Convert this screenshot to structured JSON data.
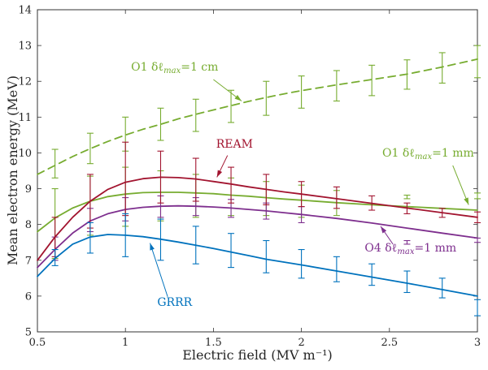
{
  "chart_data": {
    "type": "line",
    "title": "",
    "xlabel": "Electric field (MV m⁻¹)",
    "ylabel": "Mean electron energy (MeV)",
    "xlim": [
      0.5,
      3
    ],
    "ylim": [
      5,
      14
    ],
    "grid": false,
    "legend_position": "inline-annotations",
    "xticks": {
      "values": [
        0.5,
        1,
        1.5,
        2,
        2.5,
        3
      ],
      "labels": [
        "0.5",
        "1",
        "1.5",
        "2",
        "2.5",
        "3"
      ]
    },
    "yticks": {
      "values": [
        5,
        6,
        7,
        8,
        9,
        10,
        11,
        12,
        13,
        14
      ],
      "labels": [
        "5",
        "6",
        "7",
        "8",
        "9",
        "10",
        "11",
        "12",
        "13",
        "14"
      ]
    },
    "series": [
      {
        "id": "o1-1cm",
        "name": "O1 δℓmax=1 cm",
        "color": "#77ac30",
        "line_style": "dashed",
        "dash": "9,6",
        "x": [
          0.5,
          0.6,
          0.7,
          0.8,
          0.9,
          1.0,
          1.1,
          1.2,
          1.3,
          1.4,
          1.5,
          1.6,
          1.7,
          1.8,
          1.9,
          2.0,
          2.2,
          2.4,
          2.6,
          2.8,
          3.0
        ],
        "y": [
          9.4,
          9.65,
          9.9,
          10.12,
          10.32,
          10.5,
          10.66,
          10.8,
          10.95,
          11.08,
          11.2,
          11.32,
          11.44,
          11.55,
          11.65,
          11.74,
          11.9,
          12.05,
          12.2,
          12.4,
          12.62
        ],
        "errorbars": [
          {
            "x": 0.6,
            "lo": 9.3,
            "hi": 10.1
          },
          {
            "x": 0.8,
            "lo": 9.7,
            "hi": 10.55
          },
          {
            "x": 1.0,
            "lo": 10.05,
            "hi": 11.0
          },
          {
            "x": 1.2,
            "lo": 10.35,
            "hi": 11.25
          },
          {
            "x": 1.4,
            "lo": 10.6,
            "hi": 11.5
          },
          {
            "x": 1.6,
            "lo": 10.85,
            "hi": 11.75
          },
          {
            "x": 1.8,
            "lo": 11.05,
            "hi": 12.0
          },
          {
            "x": 2.0,
            "lo": 11.25,
            "hi": 12.15
          },
          {
            "x": 2.2,
            "lo": 11.45,
            "hi": 12.3
          },
          {
            "x": 2.4,
            "lo": 11.6,
            "hi": 12.45
          },
          {
            "x": 2.6,
            "lo": 11.78,
            "hi": 12.6
          },
          {
            "x": 2.8,
            "lo": 11.95,
            "hi": 12.8
          },
          {
            "x": 3.0,
            "lo": 12.1,
            "hi": 13.0
          }
        ]
      },
      {
        "id": "o1-1mm",
        "name": "O1 δℓmax=1 mm",
        "color": "#77ac30",
        "line_style": "solid",
        "dash": "",
        "x": [
          0.5,
          0.6,
          0.7,
          0.8,
          0.9,
          1.0,
          1.1,
          1.2,
          1.3,
          1.4,
          1.5,
          1.6,
          1.7,
          1.8,
          1.9,
          2.0,
          2.2,
          2.4,
          2.6,
          2.8,
          3.0
        ],
        "y": [
          7.8,
          8.18,
          8.46,
          8.65,
          8.78,
          8.85,
          8.89,
          8.9,
          8.9,
          8.88,
          8.86,
          8.82,
          8.79,
          8.75,
          8.71,
          8.68,
          8.61,
          8.55,
          8.5,
          8.45,
          8.4
        ],
        "errorbars": [
          {
            "x": 0.6,
            "lo": 7.05,
            "hi": 9.0
          },
          {
            "x": 0.8,
            "lo": 7.7,
            "hi": 9.35
          },
          {
            "x": 1.0,
            "lo": 7.95,
            "hi": 9.6
          },
          {
            "x": 1.2,
            "lo": 8.1,
            "hi": 9.5
          },
          {
            "x": 1.4,
            "lo": 8.2,
            "hi": 9.4
          },
          {
            "x": 1.6,
            "lo": 8.25,
            "hi": 9.3
          },
          {
            "x": 1.8,
            "lo": 8.25,
            "hi": 9.2
          },
          {
            "x": 2.0,
            "lo": 8.2,
            "hi": 9.1
          },
          {
            "x": 2.2,
            "lo": 8.25,
            "hi": 8.95
          },
          {
            "x": 2.6,
            "lo": 8.72,
            "hi": 8.82
          },
          {
            "x": 3.0,
            "lo": 8.72,
            "hi": 8.88
          }
        ]
      },
      {
        "id": "o4-1mm",
        "name": "O4 δℓmax=1 mm",
        "color": "#7e2f8e",
        "line_style": "solid",
        "dash": "",
        "x": [
          0.5,
          0.6,
          0.7,
          0.8,
          0.9,
          1.0,
          1.1,
          1.2,
          1.3,
          1.4,
          1.5,
          1.6,
          1.7,
          1.8,
          1.9,
          2.0,
          2.2,
          2.4,
          2.6,
          2.8,
          3.0
        ],
        "y": [
          6.8,
          7.3,
          7.76,
          8.1,
          8.3,
          8.42,
          8.48,
          8.51,
          8.52,
          8.51,
          8.49,
          8.46,
          8.42,
          8.38,
          8.33,
          8.28,
          8.17,
          8.04,
          7.9,
          7.76,
          7.62
        ],
        "errorbars": [
          {
            "x": 0.6,
            "lo": 7.0,
            "hi": 7.65
          },
          {
            "x": 0.8,
            "lo": 7.8,
            "hi": 8.45
          },
          {
            "x": 1.0,
            "lo": 8.1,
            "hi": 8.75
          },
          {
            "x": 1.2,
            "lo": 8.2,
            "hi": 8.8
          },
          {
            "x": 1.4,
            "lo": 8.25,
            "hi": 8.75
          },
          {
            "x": 1.6,
            "lo": 8.2,
            "hi": 8.7
          },
          {
            "x": 1.8,
            "lo": 8.15,
            "hi": 8.6
          },
          {
            "x": 2.0,
            "lo": 8.05,
            "hi": 8.5
          },
          {
            "x": 2.6,
            "lo": 7.45,
            "hi": 7.55
          },
          {
            "x": 3.0,
            "lo": 7.5,
            "hi": 7.62
          }
        ]
      },
      {
        "id": "ream",
        "name": "REAM",
        "color": "#a2142f",
        "line_style": "solid",
        "dash": "",
        "x": [
          0.5,
          0.6,
          0.7,
          0.8,
          0.9,
          1.0,
          1.1,
          1.2,
          1.3,
          1.4,
          1.5,
          1.6,
          1.7,
          1.8,
          1.9,
          2.0,
          2.2,
          2.4,
          2.6,
          2.8,
          3.0
        ],
        "y": [
          7.0,
          7.65,
          8.2,
          8.65,
          8.98,
          9.18,
          9.28,
          9.32,
          9.31,
          9.27,
          9.2,
          9.13,
          9.05,
          8.98,
          8.91,
          8.85,
          8.72,
          8.59,
          8.46,
          8.33,
          8.2
        ],
        "errorbars": [
          {
            "x": 0.6,
            "lo": 7.1,
            "hi": 8.2
          },
          {
            "x": 0.8,
            "lo": 7.9,
            "hi": 9.4
          },
          {
            "x": 1.0,
            "lo": 8.25,
            "hi": 10.3
          },
          {
            "x": 1.2,
            "lo": 8.6,
            "hi": 10.05
          },
          {
            "x": 1.4,
            "lo": 8.65,
            "hi": 9.85
          },
          {
            "x": 1.6,
            "lo": 8.6,
            "hi": 9.6
          },
          {
            "x": 1.8,
            "lo": 8.55,
            "hi": 9.4
          },
          {
            "x": 2.0,
            "lo": 8.5,
            "hi": 9.2
          },
          {
            "x": 2.2,
            "lo": 8.45,
            "hi": 9.05
          },
          {
            "x": 2.4,
            "lo": 8.4,
            "hi": 8.8
          },
          {
            "x": 2.6,
            "lo": 8.3,
            "hi": 8.6
          },
          {
            "x": 2.8,
            "lo": 8.2,
            "hi": 8.45
          },
          {
            "x": 3.0,
            "lo": 8.05,
            "hi": 8.35
          }
        ]
      },
      {
        "id": "grrr",
        "name": "GRRR",
        "color": "#0072bd",
        "line_style": "solid",
        "dash": "",
        "x": [
          0.5,
          0.6,
          0.7,
          0.8,
          0.9,
          1.0,
          1.1,
          1.2,
          1.3,
          1.4,
          1.5,
          1.6,
          1.7,
          1.8,
          1.9,
          2.0,
          2.2,
          2.4,
          2.6,
          2.8,
          3.0
        ],
        "y": [
          6.55,
          7.05,
          7.45,
          7.65,
          7.72,
          7.7,
          7.66,
          7.59,
          7.51,
          7.42,
          7.33,
          7.23,
          7.13,
          7.03,
          6.95,
          6.87,
          6.7,
          6.53,
          6.36,
          6.18,
          6.0
        ],
        "errorbars": [
          {
            "x": 0.6,
            "lo": 6.85,
            "hi": 7.3
          },
          {
            "x": 0.8,
            "lo": 7.2,
            "hi": 8.05
          },
          {
            "x": 1.0,
            "lo": 7.1,
            "hi": 8.3
          },
          {
            "x": 1.2,
            "lo": 7.0,
            "hi": 8.15
          },
          {
            "x": 1.4,
            "lo": 6.9,
            "hi": 7.95
          },
          {
            "x": 1.6,
            "lo": 6.8,
            "hi": 7.75
          },
          {
            "x": 1.8,
            "lo": 6.65,
            "hi": 7.55
          },
          {
            "x": 2.0,
            "lo": 6.5,
            "hi": 7.3
          },
          {
            "x": 2.2,
            "lo": 6.4,
            "hi": 7.1
          },
          {
            "x": 2.4,
            "lo": 6.3,
            "hi": 6.9
          },
          {
            "x": 2.6,
            "lo": 6.1,
            "hi": 6.7
          },
          {
            "x": 2.8,
            "lo": 5.95,
            "hi": 6.5
          },
          {
            "x": 3.0,
            "lo": 5.45,
            "hi": 5.9
          }
        ]
      }
    ],
    "annotations": [
      {
        "id": "o1-1cm-label",
        "label": "O1 δℓmax=1 cm",
        "pre": "O1 δℓ",
        "sub": "max",
        "post": "=1 cm",
        "color": "#77ac30",
        "x": 1.28,
        "y": 12.3,
        "arrow": {
          "x1": 1.5,
          "y1": 12.05,
          "x2": 1.66,
          "y2": 11.45
        }
      },
      {
        "id": "ream-label",
        "label": "REAM",
        "pre": "REAM",
        "sub": "",
        "post": "",
        "color": "#a2142f",
        "x": 1.62,
        "y": 10.15,
        "arrow": {
          "x1": 1.58,
          "y1": 9.93,
          "x2": 1.52,
          "y2": 9.32
        }
      },
      {
        "id": "o1-1mm-label",
        "label": "O1 δℓmax=1 mm",
        "pre": "O1 δℓ",
        "sub": "max",
        "post": "=1 mm",
        "color": "#77ac30",
        "x": 2.72,
        "y": 9.9,
        "arrow": {
          "x1": 2.86,
          "y1": 9.65,
          "x2": 2.95,
          "y2": 8.55
        }
      },
      {
        "id": "o4-1mm-label",
        "label": "O4 δℓmax=1 mm",
        "pre": "O4 δℓ",
        "sub": "max",
        "post": "=1 mm",
        "color": "#7e2f8e",
        "x": 2.62,
        "y": 7.25,
        "arrow": {
          "x1": 2.52,
          "y1": 7.45,
          "x2": 2.45,
          "y2": 7.95
        }
      },
      {
        "id": "grrr-label",
        "label": "GRRR",
        "pre": "GRRR",
        "sub": "",
        "post": "",
        "color": "#0072bd",
        "x": 1.28,
        "y": 5.72,
        "arrow": {
          "x1": 1.24,
          "y1": 5.98,
          "x2": 1.14,
          "y2": 7.48
        }
      }
    ]
  }
}
